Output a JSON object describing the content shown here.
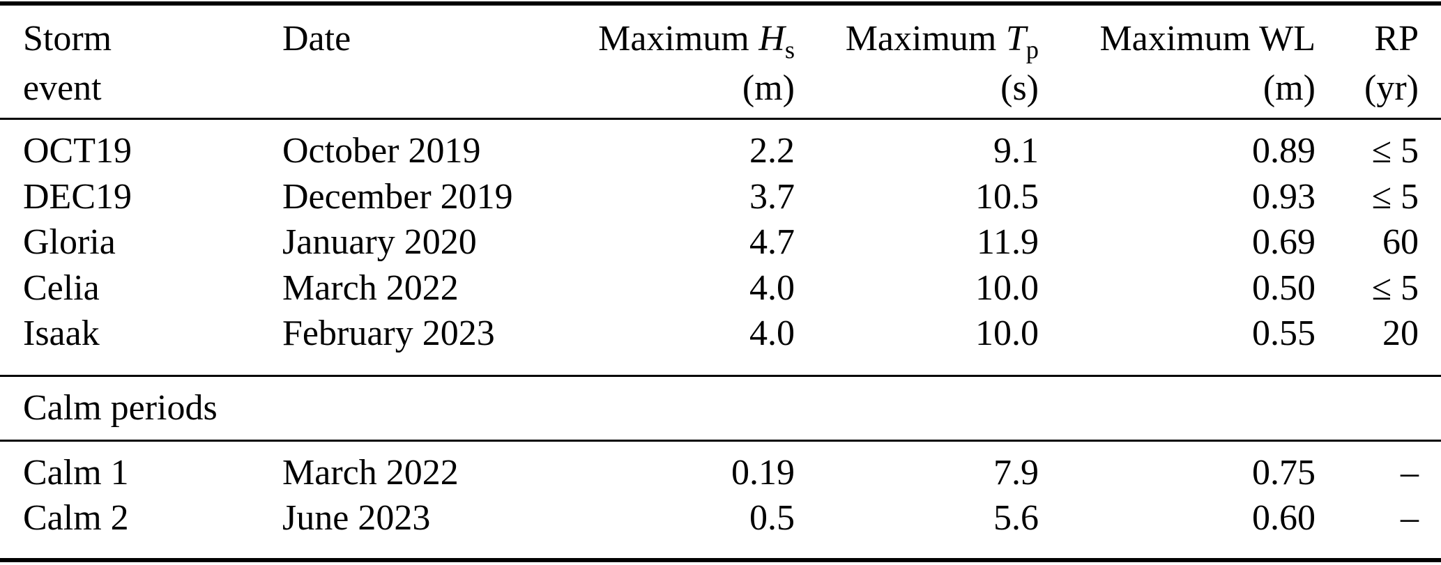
{
  "table": {
    "header": {
      "col1": {
        "line1": "Storm",
        "line2": "event"
      },
      "col2": {
        "label": "Date"
      },
      "col3": {
        "prefix": "Maximum",
        "symbol": "H",
        "subscript": "s",
        "unit": "(m)"
      },
      "col4": {
        "prefix": "Maximum",
        "symbol": "T",
        "subscript": "p",
        "unit": "(s)"
      },
      "col5": {
        "label": "Maximum WL",
        "unit": "(m)"
      },
      "col6": {
        "label": "RP",
        "unit": "(yr)"
      }
    },
    "storm_rows": [
      {
        "event": "OCT19",
        "date": "October 2019",
        "hs": "2.2",
        "tp": "9.1",
        "wl": "0.89",
        "rp": "≤ 5"
      },
      {
        "event": "DEC19",
        "date": "December 2019",
        "hs": "3.7",
        "tp": "10.5",
        "wl": "0.93",
        "rp": "≤ 5"
      },
      {
        "event": "Gloria",
        "date": "January 2020",
        "hs": "4.7",
        "tp": "11.9",
        "wl": "0.69",
        "rp": "60"
      },
      {
        "event": "Celia",
        "date": "March 2022",
        "hs": "4.0",
        "tp": "10.0",
        "wl": "0.50",
        "rp": "≤ 5"
      },
      {
        "event": "Isaak",
        "date": "February 2023",
        "hs": "4.0",
        "tp": "10.0",
        "wl": "0.55",
        "rp": "20"
      }
    ],
    "section_label": "Calm periods",
    "calm_rows": [
      {
        "event": "Calm 1",
        "date": "March 2022",
        "hs": "0.19",
        "tp": "7.9",
        "wl": "0.75",
        "rp": "–"
      },
      {
        "event": "Calm 2",
        "date": "June 2023",
        "hs": "0.5",
        "tp": "5.6",
        "wl": "0.60",
        "rp": "–"
      }
    ]
  }
}
